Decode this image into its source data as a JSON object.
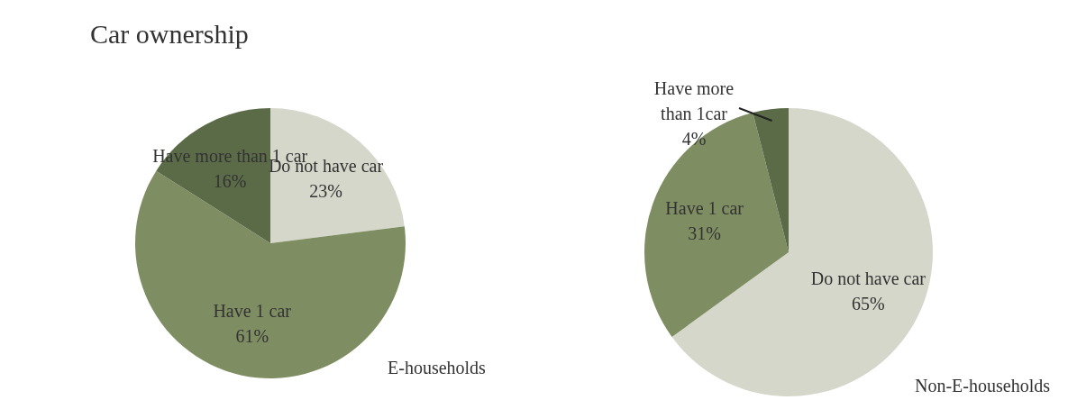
{
  "chart_data": [
    {
      "type": "pie",
      "title": "Car ownership",
      "annotations": [
        "E-households"
      ],
      "categories": [
        "Do not have car",
        "Have 1 car",
        "Have more than 1 car"
      ],
      "values": [
        23,
        61,
        16
      ],
      "value_labels": [
        "23%",
        "61%",
        "16%"
      ],
      "colors": [
        "#d5d7cb",
        "#7f8e62",
        "#5b6a47"
      ],
      "data_labels": false
    },
    {
      "type": "pie",
      "annotations": [
        "Non-E-households"
      ],
      "categories": [
        "Do not have car",
        "Have 1 car",
        "Have more than 1car"
      ],
      "values": [
        65,
        31,
        4
      ],
      "value_labels": [
        "65%",
        "31%",
        "4%"
      ],
      "colors": [
        "#d5d7cb",
        "#7f8e62",
        "#5b6a47"
      ],
      "data_labels": false
    }
  ]
}
